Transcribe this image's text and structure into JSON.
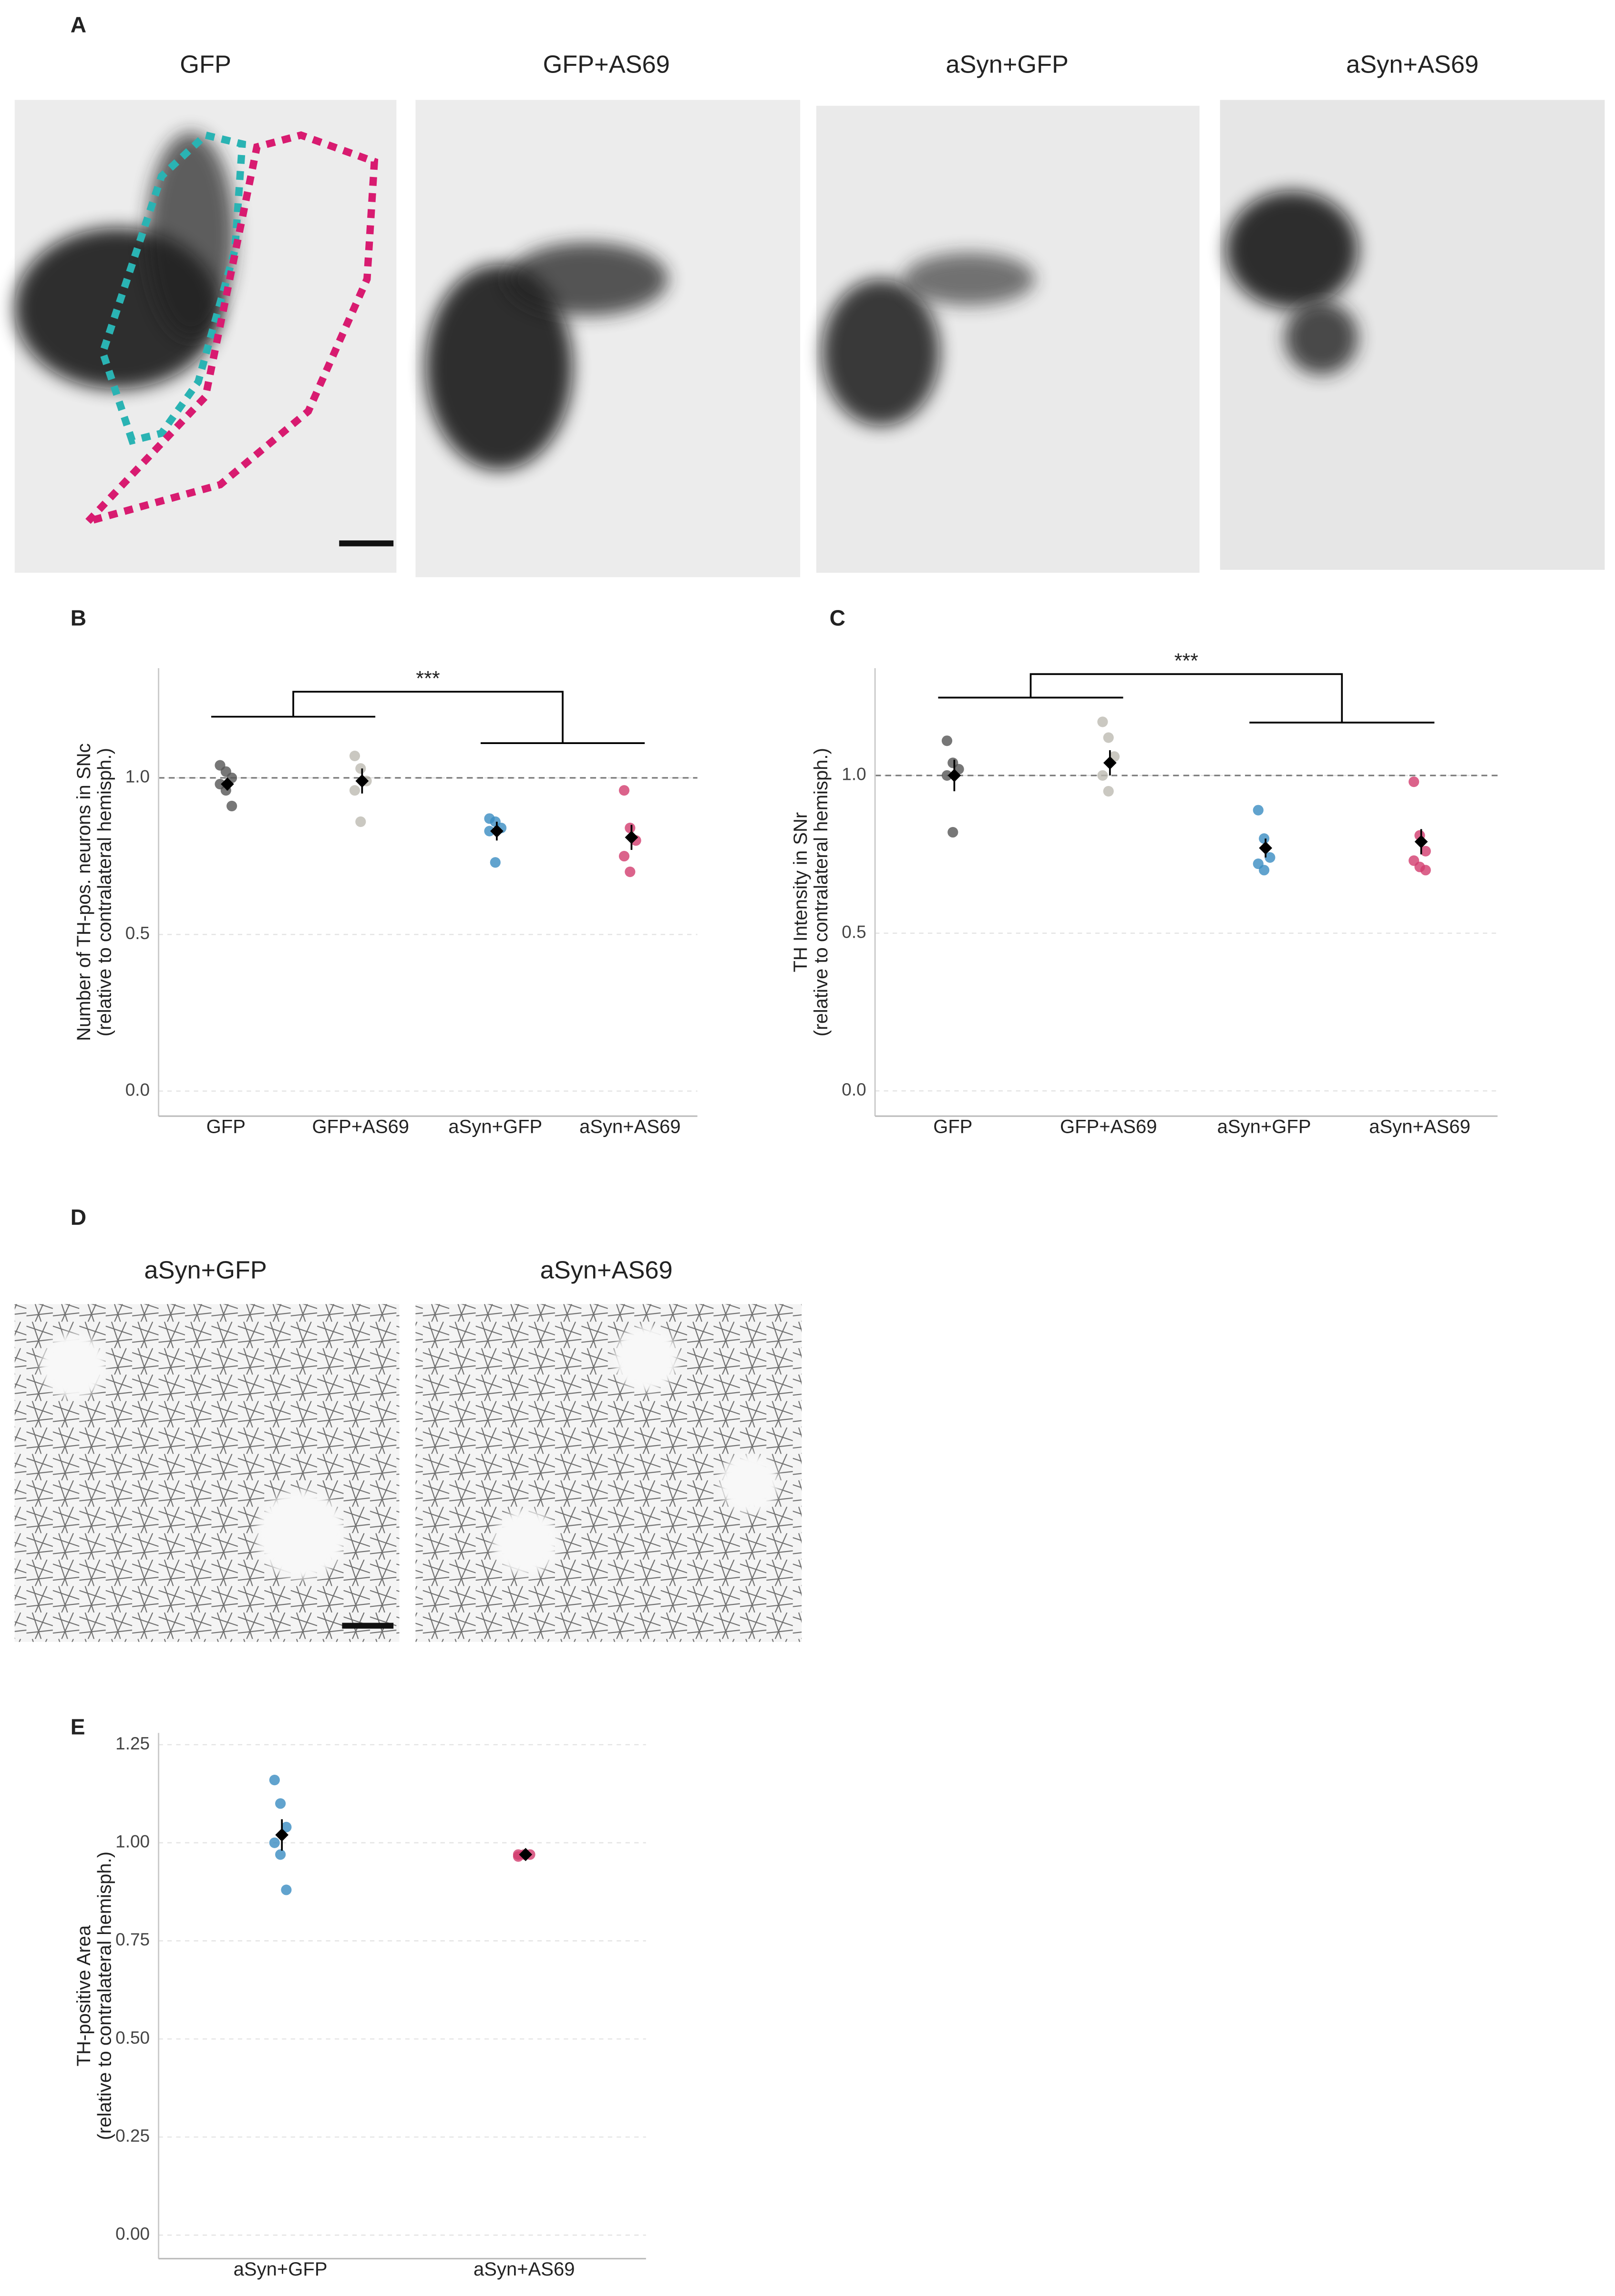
{
  "panels": {
    "A": {
      "letter": "A",
      "titles": [
        {
          "text": "GFP",
          "color": "#222222"
        },
        {
          "text": "GFP+AS69",
          "color": "#a8a8a0"
        },
        {
          "text": "aSyn+GFP",
          "color": "#3a8cc2"
        },
        {
          "text": "aSyn+AS69",
          "color": "#d23c6e"
        }
      ]
    },
    "D": {
      "letter": "D",
      "titles": [
        {
          "text": "aSyn+GFP",
          "color": "#3a8cc2"
        },
        {
          "text": "aSyn+AS69",
          "color": "#d23c6e"
        }
      ]
    }
  },
  "chart_data": [
    {
      "type": "dot",
      "letter": "B",
      "ylabel": [
        "Number of TH-pos. neurons in SNc",
        "(relative to contralateral hemisph.)"
      ],
      "annotation": "***",
      "hline": 1,
      "grid": true,
      "ylim": [
        -0.08,
        1.35
      ],
      "yticks": [
        {
          "value": 0,
          "label": "0.0"
        },
        0.5,
        {
          "value": 1,
          "label": "1.0"
        }
      ],
      "groups": [
        {
          "name": "GFP",
          "color": "#555555",
          "points": [
            1.04,
            1.02,
            1.0,
            0.98,
            0.96,
            0.91
          ],
          "mean": 0.98,
          "sem": 0.02
        },
        {
          "name": "GFP+AS69",
          "color": "#bdbab2",
          "points": [
            1.07,
            1.03,
            0.99,
            0.96,
            0.86
          ],
          "mean": 0.99,
          "sem": 0.04
        },
        {
          "name": "aSyn+GFP",
          "color": "#3a8cc2",
          "points": [
            0.87,
            0.86,
            0.84,
            0.83,
            0.73
          ],
          "mean": 0.83,
          "sem": 0.03
        },
        {
          "name": "aSyn+AS69",
          "color": "#d23c6e",
          "points": [
            0.96,
            0.84,
            0.8,
            0.75,
            0.7
          ],
          "mean": 0.81,
          "sem": 0.04
        }
      ]
    },
    {
      "type": "dot",
      "letter": "C",
      "ylabel": [
        "TH Intensity in SNr",
        "(relative to contralateral hemisph.)"
      ],
      "annotation": "***",
      "hline": 1,
      "grid": true,
      "ylim": [
        -0.08,
        1.34
      ],
      "yticks": [
        {
          "value": 0,
          "label": "0.0"
        },
        0.5,
        {
          "value": 1,
          "label": "1.0"
        }
      ],
      "groups": [
        {
          "name": "GFP",
          "color": "#555555",
          "points": [
            1.11,
            1.04,
            1.02,
            1.0,
            0.82
          ],
          "mean": 1.0,
          "sem": 0.05
        },
        {
          "name": "GFP+AS69",
          "color": "#bdbab2",
          "points": [
            1.17,
            1.12,
            1.06,
            1.0,
            0.95
          ],
          "mean": 1.04,
          "sem": 0.04
        },
        {
          "name": "aSyn+GFP",
          "color": "#3a8cc2",
          "points": [
            0.89,
            0.8,
            0.74,
            0.72,
            0.7
          ],
          "mean": 0.77,
          "sem": 0.03
        },
        {
          "name": "aSyn+AS69",
          "color": "#d23c6e",
          "points": [
            0.98,
            0.81,
            0.76,
            0.73,
            0.71,
            0.7
          ],
          "mean": 0.79,
          "sem": 0.04
        }
      ]
    },
    {
      "type": "dot",
      "letter": "E",
      "ylabel": [
        "TH-positive Area",
        "(relative to contralateral hemisph.)"
      ],
      "grid": true,
      "ylim": [
        -0.06,
        1.28
      ],
      "yticks": [
        {
          "value": 0,
          "label": "0.00"
        },
        0.25,
        {
          "value": 0.5,
          "label": "0.50"
        },
        0.75,
        {
          "value": 1,
          "label": "1.00"
        },
        1.25
      ],
      "groups": [
        {
          "name": "aSyn+GFP",
          "color": "#3a8cc2",
          "points": [
            1.16,
            1.1,
            1.04,
            1.0,
            0.97,
            0.88
          ],
          "mean": 1.02,
          "sem": 0.04
        },
        {
          "name": "aSyn+AS69",
          "color": "#d23c6e",
          "points": [
            0.97,
            0.97,
            0.97,
            0.965
          ],
          "mean": 0.97,
          "sem": 0.003
        }
      ]
    }
  ]
}
